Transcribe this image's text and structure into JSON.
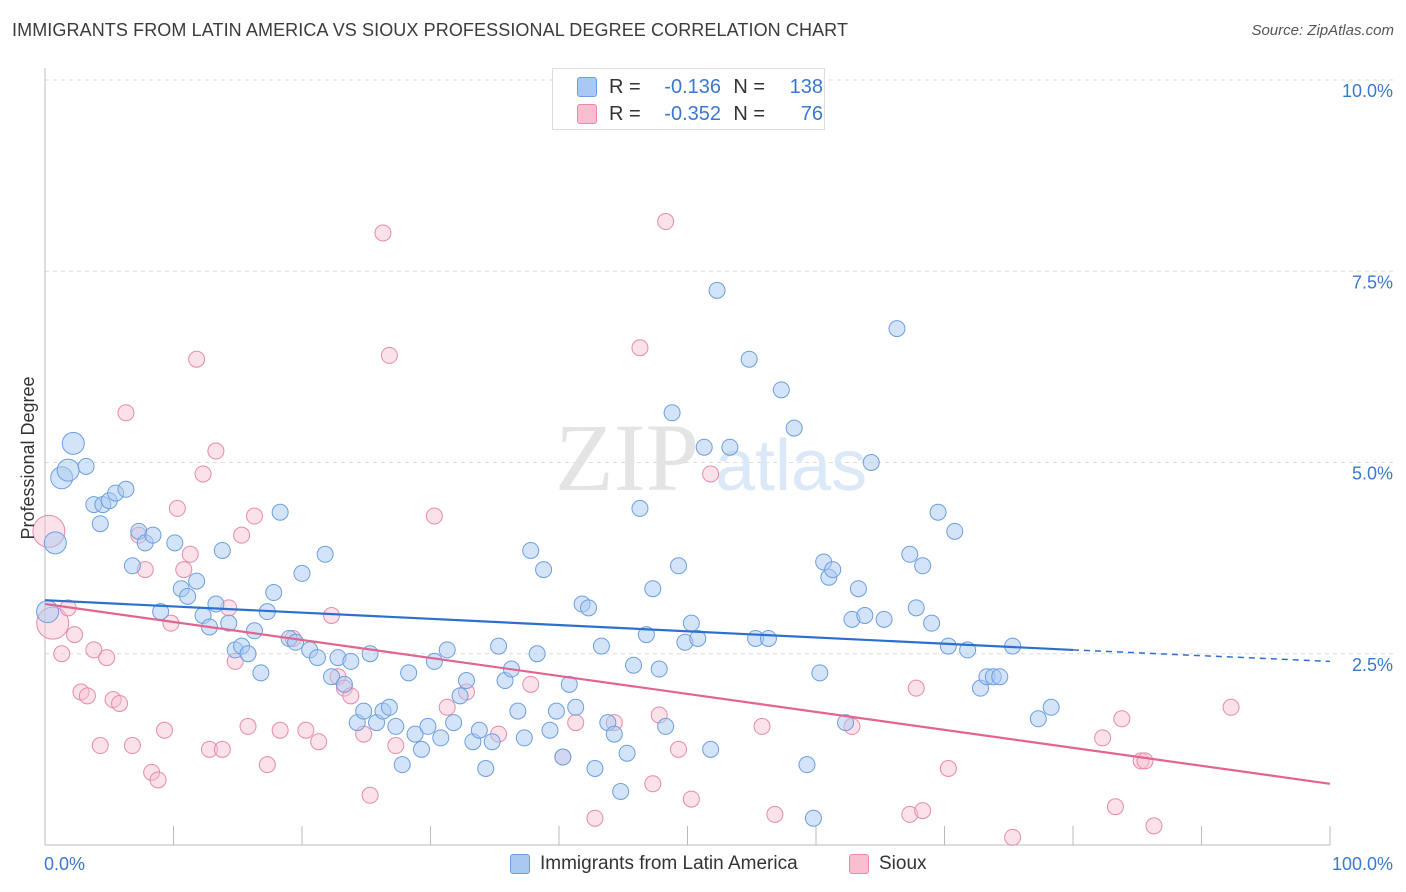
{
  "title": "IMMIGRANTS FROM LATIN AMERICA VS SIOUX PROFESSIONAL DEGREE CORRELATION CHART",
  "source": "Source: ZipAtlas.com",
  "watermark": {
    "zip": "ZIP",
    "atlas": "atlas"
  },
  "colors": {
    "blue_fill": "#a9c9f2",
    "blue_stroke": "#6c9ee0",
    "blue_line": "#2b70cf",
    "pink_fill": "#f7bfd0",
    "pink_stroke": "#e88aa8",
    "pink_line": "#e2648f",
    "axis_text": "#3a78d0",
    "grid": "#dcdcdc"
  },
  "stats": [
    {
      "r_label": "R =",
      "r_value": "-0.136",
      "n_label": "N =",
      "n_value": "138",
      "color": "blue"
    },
    {
      "r_label": "R =",
      "r_value": "-0.352",
      "n_label": "N =",
      "n_value": "76",
      "color": "pink"
    }
  ],
  "legend": [
    {
      "label": "Immigrants from Latin America",
      "color": "blue"
    },
    {
      "label": "Sioux",
      "color": "pink"
    }
  ],
  "chart_data": {
    "type": "scatter",
    "title": "IMMIGRANTS FROM LATIN AMERICA VS SIOUX PROFESSIONAL DEGREE CORRELATION CHART",
    "xlabel": "",
    "ylabel": "Professional Degree",
    "xlim": [
      0,
      100
    ],
    "ylim": [
      0,
      10
    ],
    "x_tick_labels": [
      "0.0%",
      "100.0%"
    ],
    "y_ticks": [
      2.5,
      5.0,
      7.5,
      10.0
    ],
    "y_tick_labels": [
      "2.5%",
      "5.0%",
      "7.5%",
      "10.0%"
    ],
    "grid": "horizontal dashed",
    "legend_position": "bottom",
    "series": [
      {
        "name": "Immigrants from Latin America",
        "color": "blue",
        "trend": {
          "x": [
            0,
            80
          ],
          "y": [
            3.2,
            2.55
          ],
          "dashed_to": [
            100,
            2.4
          ]
        },
        "points": [
          [
            0.2,
            3.05
          ],
          [
            0.8,
            3.95
          ],
          [
            1.3,
            4.8
          ],
          [
            1.8,
            4.9
          ],
          [
            2.2,
            5.25
          ],
          [
            3.2,
            4.95
          ],
          [
            3.8,
            4.45
          ],
          [
            4.3,
            4.2
          ],
          [
            4.5,
            4.45
          ],
          [
            5.0,
            4.5
          ],
          [
            5.5,
            4.6
          ],
          [
            6.3,
            4.65
          ],
          [
            6.8,
            3.65
          ],
          [
            7.3,
            4.1
          ],
          [
            7.8,
            3.95
          ],
          [
            8.4,
            4.05
          ],
          [
            9.0,
            3.05
          ],
          [
            10.1,
            3.95
          ],
          [
            10.6,
            3.35
          ],
          [
            11.1,
            3.25
          ],
          [
            11.8,
            3.45
          ],
          [
            12.3,
            3.0
          ],
          [
            12.8,
            2.85
          ],
          [
            13.3,
            3.15
          ],
          [
            13.8,
            3.85
          ],
          [
            14.3,
            2.9
          ],
          [
            14.8,
            2.55
          ],
          [
            15.3,
            2.6
          ],
          [
            15.8,
            2.5
          ],
          [
            16.3,
            2.8
          ],
          [
            16.8,
            2.25
          ],
          [
            17.3,
            3.05
          ],
          [
            17.8,
            3.3
          ],
          [
            18.3,
            4.35
          ],
          [
            19.0,
            2.7
          ],
          [
            19.5,
            2.65
          ],
          [
            20.0,
            3.55
          ],
          [
            20.6,
            2.55
          ],
          [
            21.2,
            2.45
          ],
          [
            21.8,
            3.8
          ],
          [
            22.3,
            2.2
          ],
          [
            22.8,
            2.45
          ],
          [
            23.3,
            2.1
          ],
          [
            23.8,
            2.4
          ],
          [
            24.3,
            1.6
          ],
          [
            24.8,
            1.75
          ],
          [
            25.3,
            2.5
          ],
          [
            25.8,
            1.6
          ],
          [
            26.3,
            1.75
          ],
          [
            26.8,
            1.8
          ],
          [
            27.3,
            1.55
          ],
          [
            27.8,
            1.05
          ],
          [
            28.3,
            2.25
          ],
          [
            28.8,
            1.45
          ],
          [
            29.3,
            1.25
          ],
          [
            29.8,
            1.55
          ],
          [
            30.3,
            2.4
          ],
          [
            30.8,
            1.4
          ],
          [
            31.3,
            2.55
          ],
          [
            31.8,
            1.6
          ],
          [
            32.3,
            1.95
          ],
          [
            32.8,
            2.15
          ],
          [
            33.3,
            1.35
          ],
          [
            33.8,
            1.5
          ],
          [
            34.3,
            1.0
          ],
          [
            34.8,
            1.35
          ],
          [
            35.3,
            2.6
          ],
          [
            35.8,
            2.15
          ],
          [
            36.3,
            2.3
          ],
          [
            36.8,
            1.75
          ],
          [
            37.3,
            1.4
          ],
          [
            37.8,
            3.85
          ],
          [
            38.3,
            2.5
          ],
          [
            38.8,
            3.6
          ],
          [
            39.3,
            1.5
          ],
          [
            39.8,
            1.75
          ],
          [
            40.3,
            1.15
          ],
          [
            40.8,
            2.1
          ],
          [
            41.3,
            1.8
          ],
          [
            41.8,
            3.15
          ],
          [
            42.3,
            3.1
          ],
          [
            42.8,
            1.0
          ],
          [
            43.3,
            2.6
          ],
          [
            43.8,
            1.6
          ],
          [
            44.3,
            1.45
          ],
          [
            44.8,
            0.7
          ],
          [
            45.3,
            1.2
          ],
          [
            45.8,
            2.35
          ],
          [
            46.3,
            4.4
          ],
          [
            46.8,
            2.75
          ],
          [
            47.3,
            3.35
          ],
          [
            47.8,
            2.3
          ],
          [
            48.3,
            1.55
          ],
          [
            48.8,
            5.65
          ],
          [
            49.3,
            3.65
          ],
          [
            49.8,
            2.65
          ],
          [
            50.3,
            2.9
          ],
          [
            50.8,
            2.7
          ],
          [
            51.3,
            5.2
          ],
          [
            51.8,
            1.25
          ],
          [
            53.3,
            5.2
          ],
          [
            54.8,
            6.35
          ],
          [
            55.3,
            2.7
          ],
          [
            56.3,
            2.7
          ],
          [
            57.3,
            5.95
          ],
          [
            58.3,
            5.45
          ],
          [
            59.3,
            1.05
          ],
          [
            59.8,
            0.35
          ],
          [
            60.3,
            2.25
          ],
          [
            60.6,
            3.7
          ],
          [
            61.0,
            3.5
          ],
          [
            61.3,
            3.6
          ],
          [
            62.3,
            1.6
          ],
          [
            62.8,
            2.95
          ],
          [
            63.3,
            3.35
          ],
          [
            63.8,
            3.0
          ],
          [
            64.3,
            5.0
          ],
          [
            65.3,
            2.95
          ],
          [
            66.3,
            6.75
          ],
          [
            67.3,
            3.8
          ],
          [
            67.8,
            3.1
          ],
          [
            68.3,
            3.65
          ],
          [
            69.0,
            2.9
          ],
          [
            69.5,
            4.35
          ],
          [
            70.3,
            2.6
          ],
          [
            70.8,
            4.1
          ],
          [
            71.8,
            2.55
          ],
          [
            72.8,
            2.05
          ],
          [
            73.3,
            2.2
          ],
          [
            73.8,
            2.2
          ],
          [
            74.3,
            2.2
          ],
          [
            75.3,
            2.6
          ],
          [
            77.3,
            1.65
          ],
          [
            78.3,
            1.8
          ],
          [
            52.3,
            7.25
          ]
        ]
      },
      {
        "name": "Sioux",
        "color": "pink",
        "trend": {
          "x": [
            0,
            100
          ],
          "y": [
            3.15,
            0.8
          ]
        },
        "points": [
          [
            0.3,
            4.1
          ],
          [
            0.6,
            2.9
          ],
          [
            1.3,
            2.5
          ],
          [
            1.8,
            3.1
          ],
          [
            2.3,
            2.75
          ],
          [
            2.8,
            2.0
          ],
          [
            3.3,
            1.95
          ],
          [
            3.8,
            2.55
          ],
          [
            4.3,
            1.3
          ],
          [
            4.8,
            2.45
          ],
          [
            5.3,
            1.9
          ],
          [
            5.8,
            1.85
          ],
          [
            6.3,
            5.65
          ],
          [
            6.8,
            1.3
          ],
          [
            7.3,
            4.05
          ],
          [
            7.8,
            3.6
          ],
          [
            8.3,
            0.95
          ],
          [
            8.8,
            0.85
          ],
          [
            9.3,
            1.5
          ],
          [
            9.8,
            2.9
          ],
          [
            10.3,
            4.4
          ],
          [
            10.8,
            3.6
          ],
          [
            11.3,
            3.8
          ],
          [
            11.8,
            6.35
          ],
          [
            12.3,
            4.85
          ],
          [
            12.8,
            1.25
          ],
          [
            13.3,
            5.15
          ],
          [
            13.8,
            1.25
          ],
          [
            14.3,
            3.1
          ],
          [
            14.8,
            2.4
          ],
          [
            15.3,
            4.05
          ],
          [
            15.8,
            1.55
          ],
          [
            16.3,
            4.3
          ],
          [
            17.3,
            1.05
          ],
          [
            18.3,
            1.5
          ],
          [
            19.3,
            2.7
          ],
          [
            20.3,
            1.5
          ],
          [
            21.3,
            1.35
          ],
          [
            22.3,
            3.0
          ],
          [
            22.8,
            2.2
          ],
          [
            23.3,
            2.05
          ],
          [
            23.8,
            1.95
          ],
          [
            24.8,
            1.45
          ],
          [
            25.3,
            0.65
          ],
          [
            26.3,
            8.0
          ],
          [
            26.8,
            6.4
          ],
          [
            27.3,
            1.3
          ],
          [
            30.3,
            4.3
          ],
          [
            31.3,
            1.8
          ],
          [
            32.8,
            2.0
          ],
          [
            35.3,
            1.45
          ],
          [
            37.8,
            2.1
          ],
          [
            40.3,
            1.15
          ],
          [
            41.3,
            1.6
          ],
          [
            42.8,
            0.35
          ],
          [
            44.3,
            1.6
          ],
          [
            46.3,
            6.5
          ],
          [
            47.3,
            0.8
          ],
          [
            47.8,
            1.7
          ],
          [
            48.3,
            8.15
          ],
          [
            49.3,
            1.25
          ],
          [
            50.3,
            0.6
          ],
          [
            51.8,
            4.85
          ],
          [
            55.8,
            1.55
          ],
          [
            56.8,
            0.4
          ],
          [
            62.8,
            1.55
          ],
          [
            67.3,
            0.4
          ],
          [
            67.8,
            2.05
          ],
          [
            68.3,
            0.45
          ],
          [
            70.3,
            1.0
          ],
          [
            75.3,
            0.1
          ],
          [
            82.3,
            1.4
          ],
          [
            83.3,
            0.5
          ],
          [
            83.8,
            1.65
          ],
          [
            85.3,
            1.1
          ],
          [
            85.6,
            1.1
          ],
          [
            86.3,
            0.25
          ],
          [
            92.3,
            1.8
          ]
        ]
      }
    ]
  }
}
